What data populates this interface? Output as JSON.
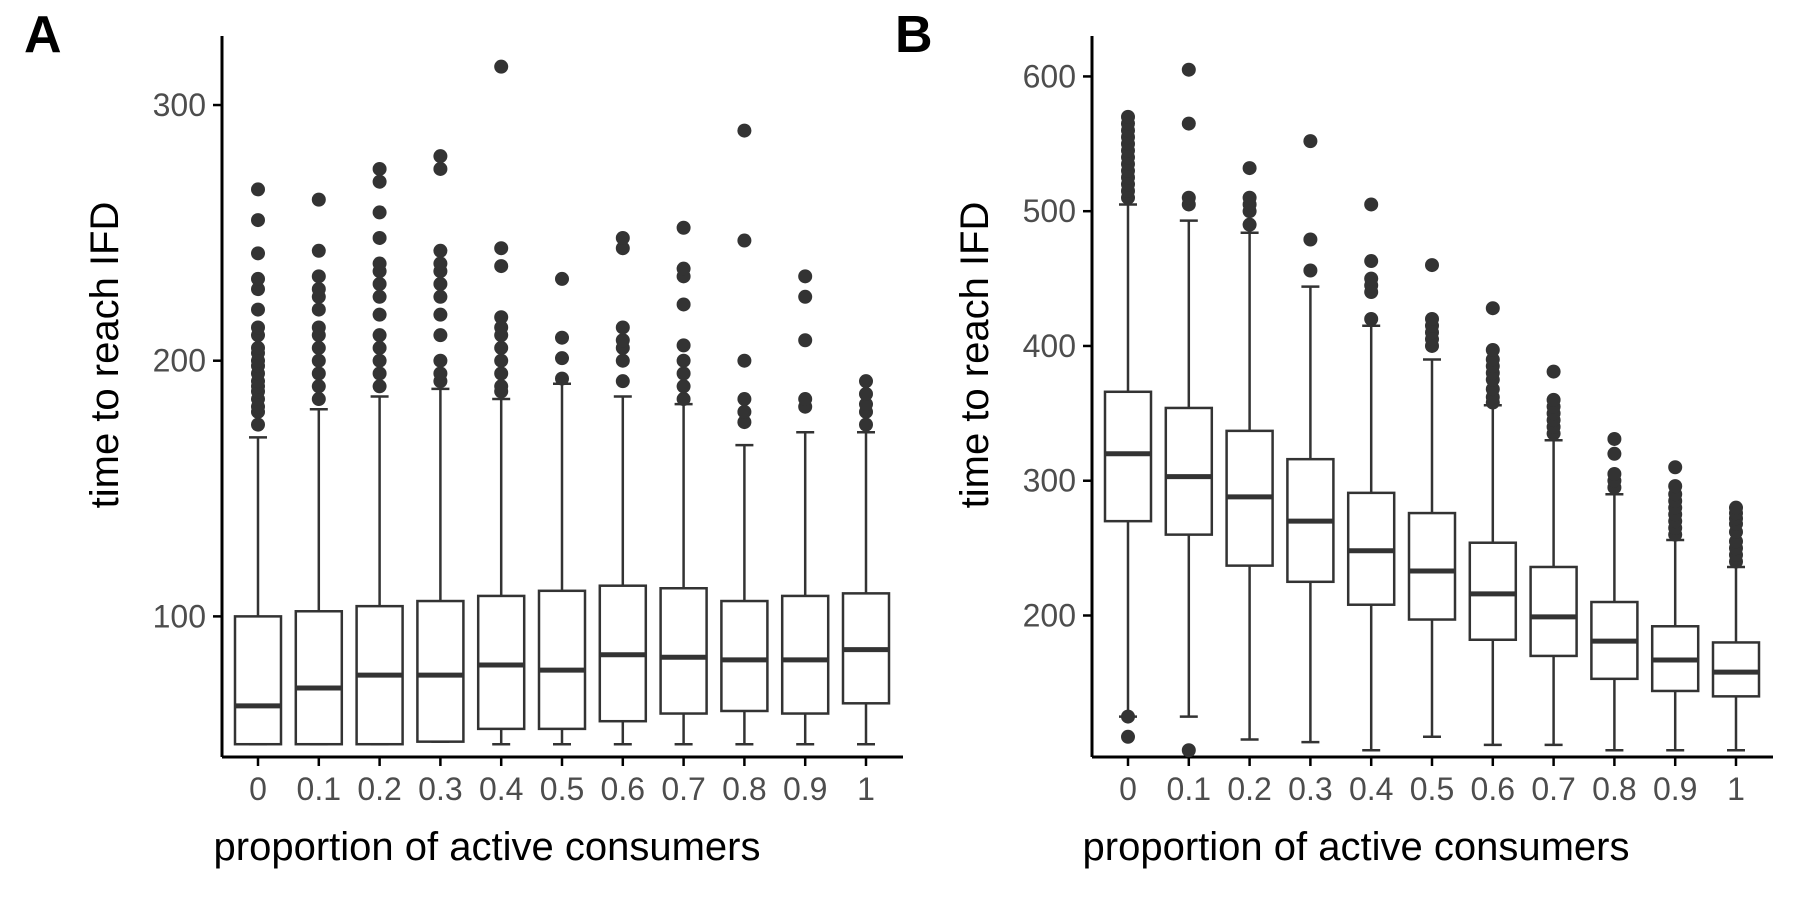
{
  "figure": {
    "panels": [
      {
        "letter": "A",
        "ylabel": "time to reach IFD",
        "xlabel": "proportion of active consumers"
      },
      {
        "letter": "B",
        "ylabel": "time to reach IFD",
        "xlabel": "proportion of active consumers"
      }
    ]
  },
  "colors": {
    "box_stroke": "#333333",
    "outlier": "#333333",
    "axis": "#000000",
    "tick_text": "#4d4d4d",
    "background": "#ffffff"
  },
  "chart_data": [
    {
      "type": "box",
      "panel": "A",
      "title": "",
      "xlabel": "proportion of active consumers",
      "ylabel": "time to reach IFD",
      "categories": [
        "0",
        "0.1",
        "0.2",
        "0.3",
        "0.4",
        "0.5",
        "0.6",
        "0.7",
        "0.8",
        "0.9",
        "1"
      ],
      "yticks": [
        100,
        200,
        300
      ],
      "ylim": [
        45,
        327
      ],
      "grid": false,
      "legend": "none",
      "boxes": [
        {
          "whisker_low": 50,
          "q1": 50,
          "median": 65,
          "q3": 100,
          "whisker_high": 170,
          "outliers": [
            175,
            180,
            182,
            185,
            188,
            190,
            192,
            195,
            198,
            200,
            203,
            205,
            210,
            213,
            220,
            228,
            232,
            242,
            255,
            267
          ]
        },
        {
          "whisker_low": 50,
          "q1": 50,
          "median": 72,
          "q3": 102,
          "whisker_high": 181,
          "outliers": [
            185,
            190,
            195,
            200,
            205,
            210,
            213,
            220,
            225,
            228,
            233,
            243,
            263
          ]
        },
        {
          "whisker_low": 50,
          "q1": 50,
          "median": 77,
          "q3": 104,
          "whisker_high": 186,
          "outliers": [
            190,
            195,
            200,
            205,
            210,
            218,
            225,
            230,
            235,
            238,
            248,
            258,
            270,
            275
          ]
        },
        {
          "whisker_low": 51,
          "q1": 51,
          "median": 77,
          "q3": 106,
          "whisker_high": 189,
          "outliers": [
            192,
            195,
            200,
            210,
            218,
            225,
            230,
            235,
            238,
            243,
            275,
            280
          ]
        },
        {
          "whisker_low": 50,
          "q1": 56,
          "median": 81,
          "q3": 108,
          "whisker_high": 185,
          "outliers": [
            188,
            190,
            195,
            200,
            205,
            210,
            213,
            217,
            237,
            244,
            315
          ]
        },
        {
          "whisker_low": 50,
          "q1": 56,
          "median": 79,
          "q3": 110,
          "whisker_high": 191,
          "outliers": [
            193,
            201,
            209,
            232
          ]
        },
        {
          "whisker_low": 50,
          "q1": 59,
          "median": 85,
          "q3": 112,
          "whisker_high": 186,
          "outliers": [
            192,
            200,
            205,
            208,
            213,
            244,
            248
          ]
        },
        {
          "whisker_low": 50,
          "q1": 62,
          "median": 84,
          "q3": 111,
          "whisker_high": 183,
          "outliers": [
            185,
            190,
            195,
            200,
            206,
            222,
            233,
            236,
            252
          ]
        },
        {
          "whisker_low": 50,
          "q1": 63,
          "median": 83,
          "q3": 106,
          "whisker_high": 167,
          "outliers": [
            176,
            180,
            185,
            200,
            247,
            290
          ]
        },
        {
          "whisker_low": 50,
          "q1": 62,
          "median": 83,
          "q3": 108,
          "whisker_high": 172,
          "outliers": [
            182,
            185,
            208,
            225,
            233
          ]
        },
        {
          "whisker_low": 50,
          "q1": 66,
          "median": 87,
          "q3": 109,
          "whisker_high": 172,
          "outliers": [
            175,
            180,
            183,
            187,
            192
          ]
        }
      ]
    },
    {
      "type": "box",
      "panel": "B",
      "title": "",
      "xlabel": "proportion of active consumers",
      "ylabel": "time to reach IFD",
      "categories": [
        "0",
        "0.1",
        "0.2",
        "0.3",
        "0.4",
        "0.5",
        "0.6",
        "0.7",
        "0.8",
        "0.9",
        "1"
      ],
      "yticks": [
        200,
        300,
        400,
        500,
        600
      ],
      "ylim": [
        95,
        630
      ],
      "grid": false,
      "legend": "none",
      "boxes": [
        {
          "whisker_low": 125,
          "q1": 270,
          "median": 320,
          "q3": 366,
          "whisker_high": 505,
          "outliers": [
            110,
            125,
            510,
            515,
            520,
            525,
            530,
            535,
            540,
            545,
            550,
            555,
            560,
            565,
            570
          ]
        },
        {
          "whisker_low": 125,
          "q1": 260,
          "median": 303,
          "q3": 354,
          "whisker_high": 493,
          "outliers": [
            100,
            505,
            510,
            565,
            605
          ]
        },
        {
          "whisker_low": 108,
          "q1": 237,
          "median": 288,
          "q3": 337,
          "whisker_high": 484,
          "outliers": [
            490,
            500,
            505,
            510,
            532
          ]
        },
        {
          "whisker_low": 106,
          "q1": 225,
          "median": 270,
          "q3": 316,
          "whisker_high": 444,
          "outliers": [
            456,
            479,
            552
          ]
        },
        {
          "whisker_low": 100,
          "q1": 208,
          "median": 248,
          "q3": 291,
          "whisker_high": 415,
          "outliers": [
            420,
            440,
            445,
            450,
            463,
            505
          ]
        },
        {
          "whisker_low": 110,
          "q1": 197,
          "median": 233,
          "q3": 276,
          "whisker_high": 390,
          "outliers": [
            400,
            405,
            410,
            415,
            420,
            460
          ]
        },
        {
          "whisker_low": 104,
          "q1": 182,
          "median": 216,
          "q3": 254,
          "whisker_high": 356,
          "outliers": [
            358,
            362,
            368,
            375,
            380,
            385,
            390,
            397,
            428
          ]
        },
        {
          "whisker_low": 104,
          "q1": 170,
          "median": 199,
          "q3": 236,
          "whisker_high": 330,
          "outliers": [
            335,
            340,
            345,
            350,
            355,
            360,
            381
          ]
        },
        {
          "whisker_low": 100,
          "q1": 153,
          "median": 181,
          "q3": 210,
          "whisker_high": 290,
          "outliers": [
            295,
            300,
            305,
            320,
            331
          ]
        },
        {
          "whisker_low": 100,
          "q1": 144,
          "median": 167,
          "q3": 192,
          "whisker_high": 256,
          "outliers": [
            260,
            265,
            270,
            275,
            280,
            285,
            290,
            296,
            310
          ]
        },
        {
          "whisker_low": 100,
          "q1": 140,
          "median": 158,
          "q3": 180,
          "whisker_high": 236,
          "outliers": [
            240,
            245,
            250,
            255,
            262,
            268,
            272,
            276,
            280
          ]
        }
      ]
    }
  ]
}
